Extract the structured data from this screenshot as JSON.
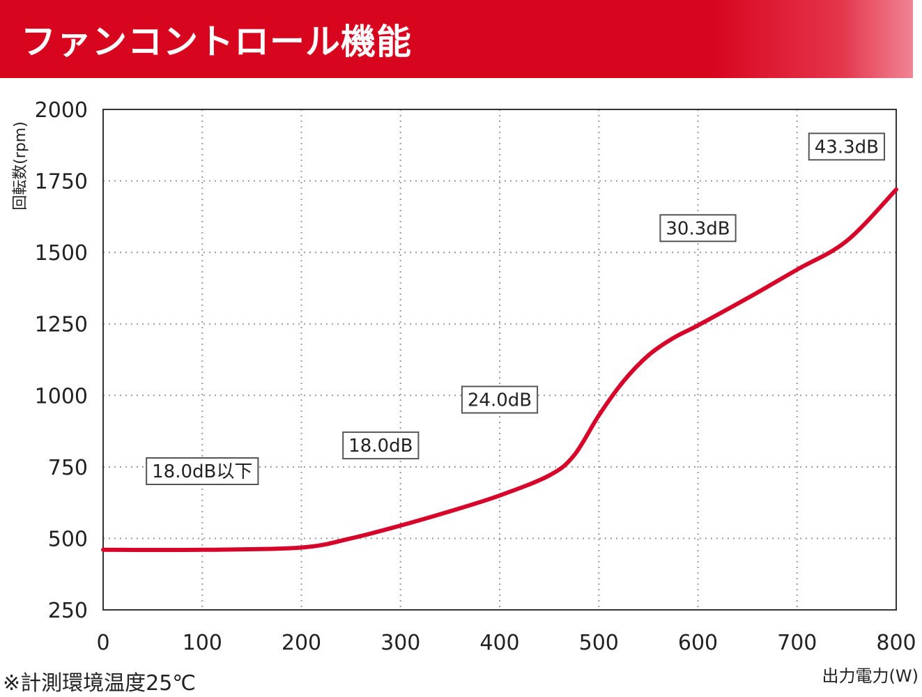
{
  "header": {
    "title": "ファンコントロール機能"
  },
  "footnote": "※計測環境温度25℃",
  "colors": {
    "banner": "#d8051f",
    "curve": "#d6062a"
  },
  "chart_data": {
    "type": "line",
    "title": "",
    "xlabel": "出力電力(W)",
    "ylabel": "回転数(rpm)",
    "xlim": [
      0,
      800
    ],
    "ylim": [
      250,
      2000
    ],
    "x_ticks": [
      "0",
      "100",
      "200",
      "300",
      "400",
      "500",
      "600",
      "700",
      "800"
    ],
    "y_ticks": [
      "250",
      "500",
      "750",
      "1000",
      "1250",
      "1500",
      "1750",
      "2000"
    ],
    "grid": true,
    "series": [
      {
        "x": [
          0,
          100,
          200,
          250,
          300,
          350,
          400,
          450,
          475,
          500,
          525,
          550,
          575,
          600,
          650,
          700,
          750,
          800
        ],
        "y": [
          460,
          460,
          468,
          500,
          545,
          595,
          650,
          720,
          790,
          930,
          1050,
          1140,
          1200,
          1245,
          1340,
          1440,
          1540,
          1720
        ]
      }
    ],
    "annotations": [
      {
        "text": "18.0dB以下",
        "x": 100,
        "y": 735
      },
      {
        "text": "18.0dB",
        "x": 280,
        "y": 825
      },
      {
        "text": "24.0dB",
        "x": 400,
        "y": 985
      },
      {
        "text": "30.3dB",
        "x": 600,
        "y": 1585
      },
      {
        "text": "43.3dB",
        "x": 750,
        "y": 1870
      }
    ]
  }
}
